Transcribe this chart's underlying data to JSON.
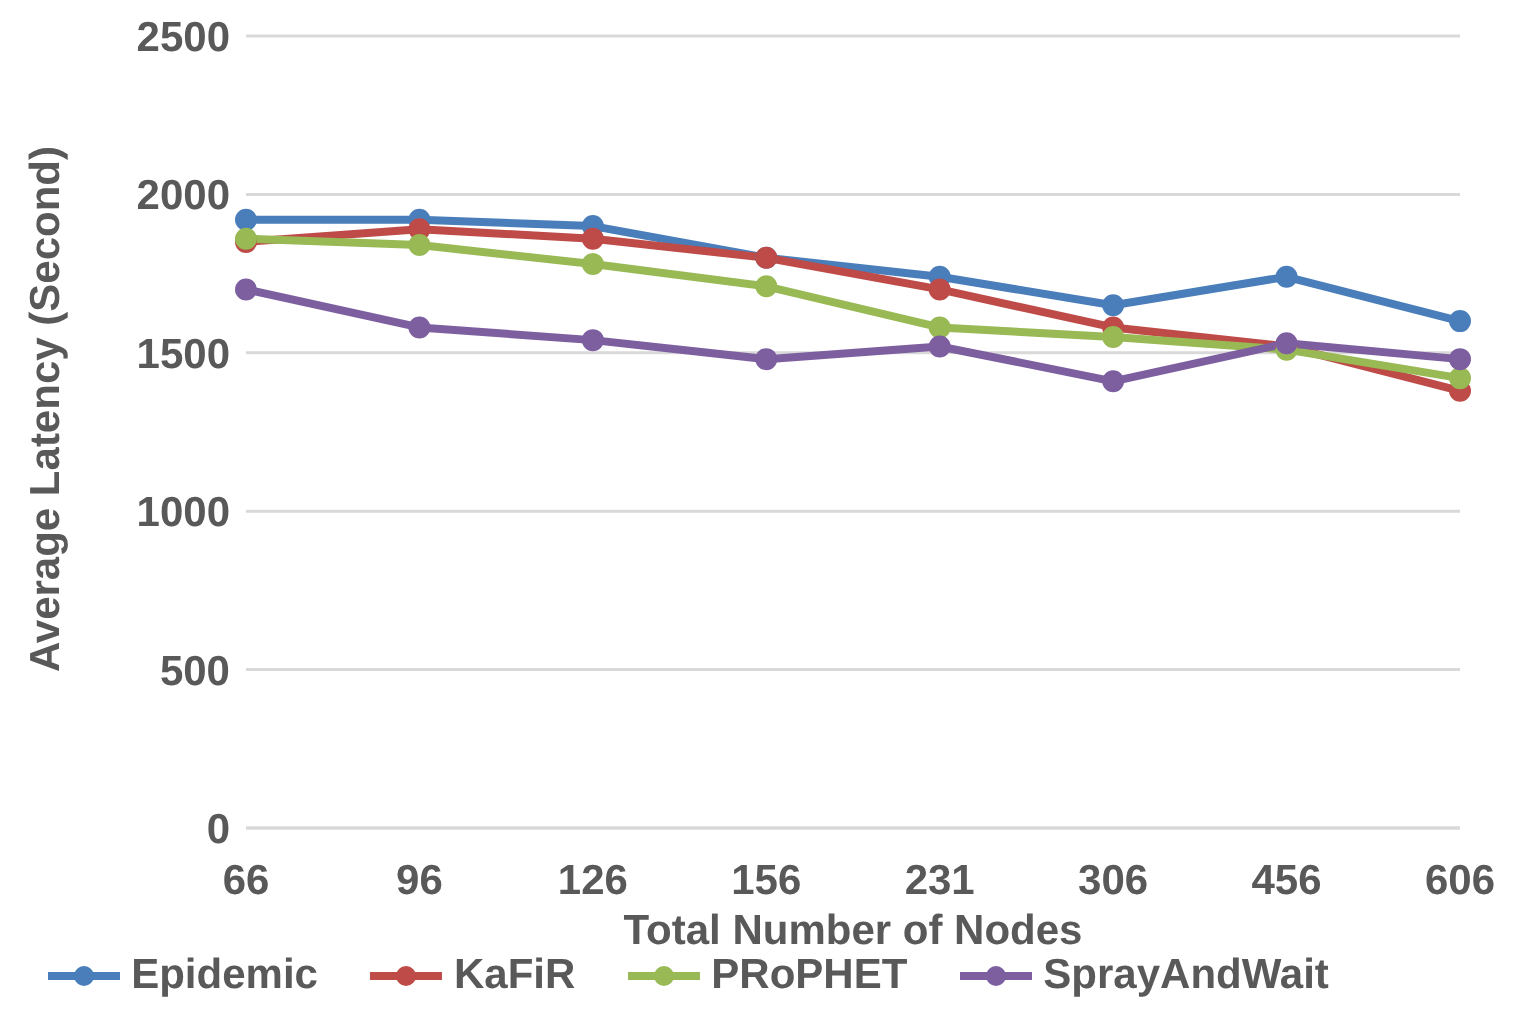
{
  "chart_data": {
    "type": "line",
    "xlabel": "Total Number of Nodes",
    "ylabel": "Average Latency (Second)",
    "categories": [
      "66",
      "96",
      "126",
      "156",
      "231",
      "306",
      "456",
      "606"
    ],
    "series": [
      {
        "name": "Epidemic",
        "color": "#4a7ebb",
        "values": [
          1920,
          1920,
          1900,
          1800,
          1740,
          1650,
          1740,
          1600
        ]
      },
      {
        "name": "KaFiR",
        "color": "#be4b48",
        "values": [
          1850,
          1890,
          1860,
          1800,
          1700,
          1580,
          1520,
          1380
        ]
      },
      {
        "name": "PRoPHET",
        "color": "#98b954",
        "values": [
          1860,
          1840,
          1780,
          1710,
          1580,
          1550,
          1510,
          1420
        ]
      },
      {
        "name": "SprayAndWait",
        "color": "#7d5fa0",
        "values": [
          1700,
          1580,
          1540,
          1480,
          1520,
          1410,
          1530,
          1480
        ]
      }
    ],
    "ylim": [
      0,
      2500
    ],
    "yticks": [
      0,
      500,
      1000,
      1500,
      2000,
      2500
    ],
    "grid": "y",
    "legend": "bottom",
    "marker": "circle",
    "line_style": "solid"
  }
}
